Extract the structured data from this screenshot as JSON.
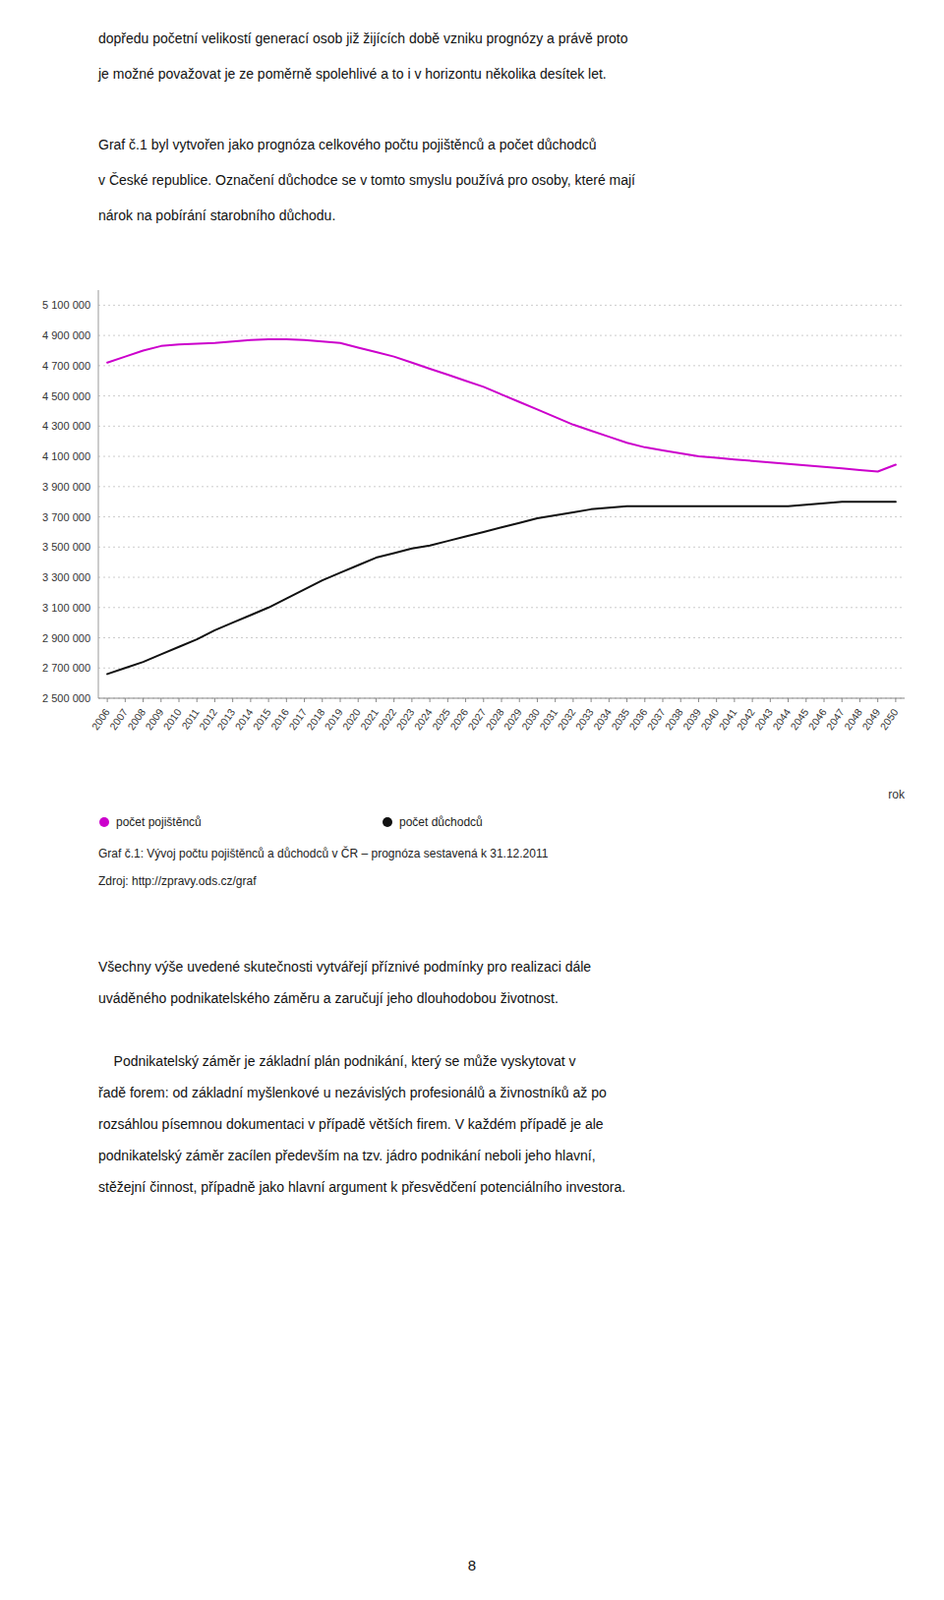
{
  "chart_data": {
    "type": "line",
    "title": "Graf č.1: Vývoj počtu pojištěnců a důchodců v ČR – prognóza sestavená k 31.12.2011",
    "source": "Zdroj: http://zpravy.ods.cz/graf",
    "x_label": "rok",
    "x": [
      2006,
      2007,
      2008,
      2009,
      2010,
      2011,
      2012,
      2013,
      2014,
      2015,
      2016,
      2017,
      2018,
      2019,
      2020,
      2021,
      2022,
      2023,
      2024,
      2025,
      2026,
      2027,
      2028,
      2029,
      2030,
      2031,
      2032,
      2033,
      2034,
      2035,
      2036,
      2037,
      2038,
      2039,
      2040,
      2041,
      2042,
      2043,
      2044,
      2045,
      2046,
      2047,
      2048,
      2049,
      2050
    ],
    "series": [
      {
        "name": "počet pojištěnců",
        "color": "#cc00cc",
        "values": [
          4720000,
          4760000,
          4800000,
          4830000,
          4840000,
          4845000,
          4850000,
          4860000,
          4870000,
          4875000,
          4875000,
          4870000,
          4860000,
          4850000,
          4820000,
          4790000,
          4760000,
          4720000,
          4680000,
          4640000,
          4600000,
          4560000,
          4510000,
          4460000,
          4410000,
          4360000,
          4310000,
          4270000,
          4230000,
          4190000,
          4160000,
          4140000,
          4120000,
          4100000,
          4090000,
          4080000,
          4070000,
          4060000,
          4050000,
          4040000,
          4030000,
          4020000,
          4010000,
          4000000,
          4045000
        ]
      },
      {
        "name": "počet důchodců",
        "color": "#111111",
        "values": [
          2660000,
          2700000,
          2740000,
          2790000,
          2840000,
          2890000,
          2950000,
          3000000,
          3050000,
          3100000,
          3160000,
          3220000,
          3280000,
          3330000,
          3380000,
          3430000,
          3460000,
          3490000,
          3510000,
          3540000,
          3570000,
          3600000,
          3630000,
          3660000,
          3690000,
          3710000,
          3730000,
          3750000,
          3760000,
          3770000,
          3770000,
          3770000,
          3770000,
          3770000,
          3770000,
          3770000,
          3770000,
          3770000,
          3770000,
          3780000,
          3790000,
          3800000,
          3800000,
          3800000,
          3800000
        ]
      }
    ],
    "xlim": [
      2005.5,
      2050.5
    ],
    "xticks": [
      2006,
      2007,
      2008,
      2009,
      2010,
      2011,
      2012,
      2013,
      2014,
      2015,
      2016,
      2017,
      2018,
      2019,
      2020,
      2021,
      2022,
      2023,
      2024,
      2025,
      2026,
      2027,
      2028,
      2029,
      2030,
      2031,
      2032,
      2033,
      2034,
      2035,
      2036,
      2037,
      2038,
      2039,
      2040,
      2041,
      2042,
      2043,
      2044,
      2045,
      2046,
      2047,
      2048,
      2049,
      2050
    ],
    "ylim": [
      2500000,
      5200000
    ],
    "yticks": [
      {
        "value": 2500000,
        "label": "2 500 000"
      },
      {
        "value": 2700000,
        "label": "2 700 000"
      },
      {
        "value": 2900000,
        "label": "2 900 000"
      },
      {
        "value": 3100000,
        "label": "3 100 000"
      },
      {
        "value": 3300000,
        "label": "3 300 000"
      },
      {
        "value": 3500000,
        "label": "3 500 000"
      },
      {
        "value": 3700000,
        "label": "3 700 000"
      },
      {
        "value": 3900000,
        "label": "3 900 000"
      },
      {
        "value": 4100000,
        "label": "4 100 000"
      },
      {
        "value": 4300000,
        "label": "4 300 000"
      },
      {
        "value": 4500000,
        "label": "4 500 000"
      },
      {
        "value": 4700000,
        "label": "4 700 000"
      },
      {
        "value": 4900000,
        "label": "4 900 000"
      },
      {
        "value": 5100000,
        "label": "5 100 000"
      }
    ],
    "grid": true,
    "legend": "bottom"
  },
  "page": {
    "top_text": [
      [
        "dopředu početní velikostí generací osob již žijících době vzniku prognózy a právě proto",
        "je možné považovat je ze poměrně spolehlivé a to i v horizontu několika desítek let."
      ],
      [
        "Graf č.1 byl vytvořen jako prognóza celkového počtu pojištěnců a počet důchodců",
        "v České republice. Označení důchodce se v tomto smyslu používá pro osoby, které mají",
        "nárok na pobírání starobního důchodu."
      ]
    ],
    "bottom_text": [
      [
        "Všechny výše uvedené skutečnosti vytvářejí příznivé podmínky pro realizaci dále",
        "uváděného podnikatelského záměru a zaručují jeho dlouhodobou životnost."
      ],
      [
        "    Podnikatelský záměr je základní plán podnikání, který se může vyskytovat v",
        "řadě forem: od základní myšlenkové u nezávislých profesionálů a živnostníků až po",
        "rozsáhlou písemnou dokumentaci v případě větších firem. V každém případě je ale",
        "podnikatelský záměr zacílen především na tzv. jádro podnikání neboli jeho hlavní,",
        "stěžejní činnost, případně jako hlavní argument k přesvědčení potenciálního investora."
      ]
    ],
    "page_number": "8"
  }
}
